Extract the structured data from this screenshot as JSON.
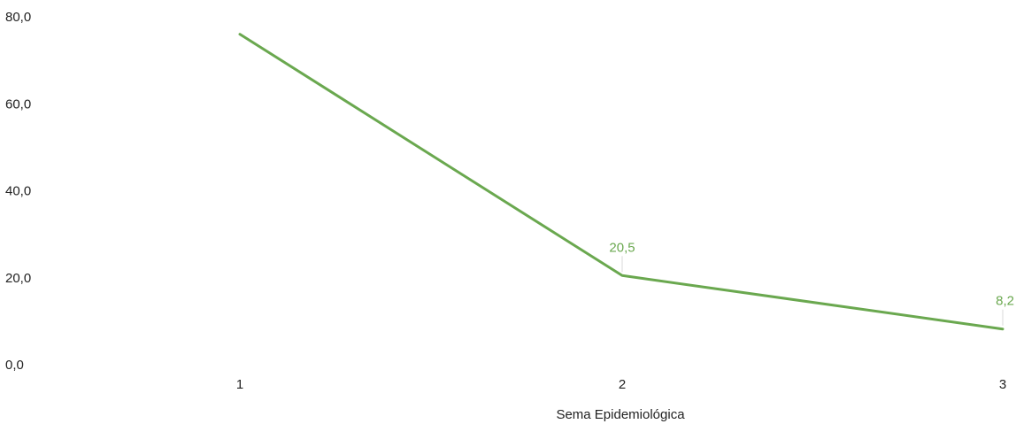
{
  "chart_data": {
    "type": "line",
    "title": "",
    "xlabel": "Sema Epidemiológica",
    "ylabel": "",
    "categories": [
      "1",
      "2",
      "3"
    ],
    "series": [
      {
        "values": [
          76.0,
          20.5,
          8.2
        ],
        "color": "#6aa84f",
        "data_labels": [
          null,
          "20,5",
          "8,2"
        ]
      }
    ],
    "y_ticks": [
      "0,0",
      "20,0",
      "40,0",
      "60,0",
      "80,0"
    ],
    "y_tick_values": [
      0,
      20,
      40,
      60,
      80
    ],
    "ylim": [
      0,
      80
    ],
    "grid": false,
    "legend": "none"
  }
}
